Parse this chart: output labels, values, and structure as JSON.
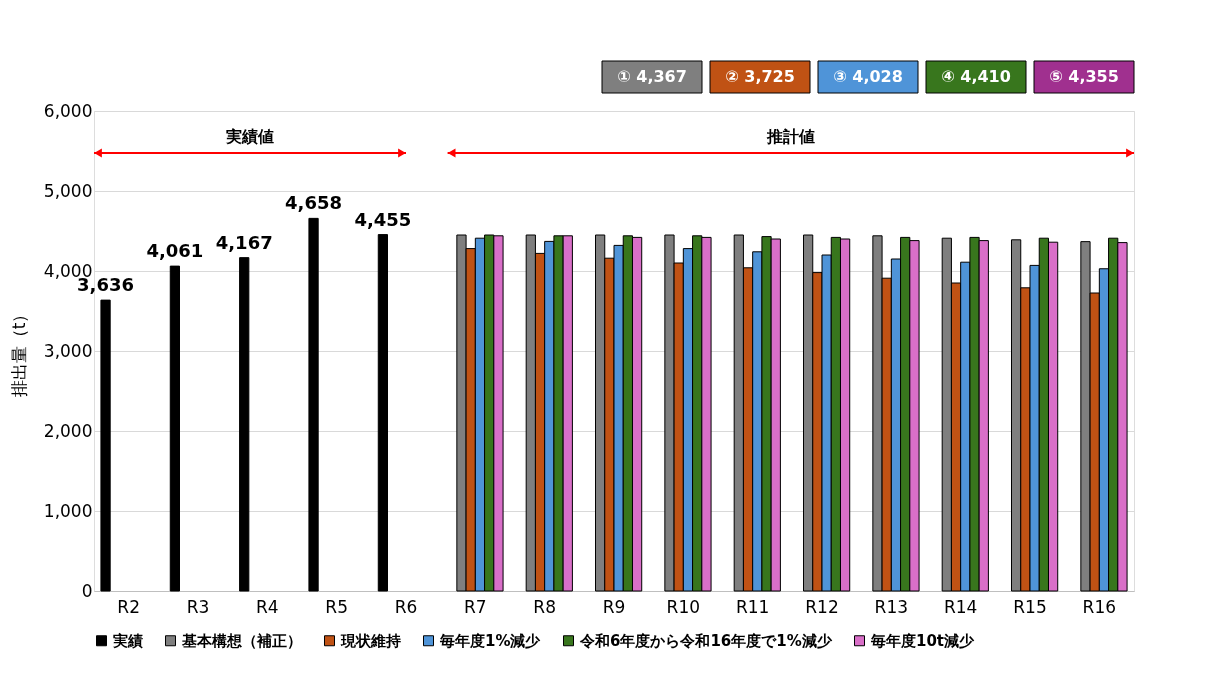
{
  "chart_data": {
    "type": "bar",
    "categories": [
      "R2",
      "R3",
      "R4",
      "R5",
      "R6",
      "R7",
      "R8",
      "R9",
      "R10",
      "R11",
      "R12",
      "R13",
      "R14",
      "R15",
      "R16"
    ],
    "ylabel": "排出量（t）",
    "ylim": [
      0,
      6000
    ],
    "yticks": [
      {
        "value": 0,
        "label": "0"
      },
      {
        "value": 1000,
        "label": "1,000"
      },
      {
        "value": 2000,
        "label": "2,000"
      },
      {
        "value": 3000,
        "label": "3,000"
      },
      {
        "value": 4000,
        "label": "4,000"
      },
      {
        "value": 5000,
        "label": "5,000"
      },
      {
        "value": 6000,
        "label": "6,000"
      }
    ],
    "grid": "y",
    "legend": "bottom",
    "series": [
      {
        "name": "実績",
        "color": "#000000",
        "values": [
          3636,
          4061,
          4167,
          4658,
          4455,
          null,
          null,
          null,
          null,
          null,
          null,
          null,
          null,
          null,
          null
        ],
        "value_labels": [
          "3,636",
          "4,061",
          "4,167",
          "4,658",
          "4,455",
          null,
          null,
          null,
          null,
          null,
          null,
          null,
          null,
          null,
          null
        ]
      },
      {
        "name": "基本構想（補正）",
        "color": "#7f7f7f",
        "values": [
          null,
          null,
          null,
          null,
          null,
          4450,
          4450,
          4450,
          4450,
          4450,
          4450,
          4440,
          4410,
          4390,
          4367
        ]
      },
      {
        "name": "現状維持",
        "color": "#c05214",
        "values": [
          null,
          null,
          null,
          null,
          null,
          4280,
          4220,
          4160,
          4100,
          4040,
          3980,
          3910,
          3850,
          3790,
          3725
        ]
      },
      {
        "name": "毎年度1%減少",
        "color": "#4f94d8",
        "values": [
          null,
          null,
          null,
          null,
          null,
          4410,
          4370,
          4320,
          4280,
          4240,
          4200,
          4150,
          4110,
          4070,
          4028
        ]
      },
      {
        "name": "令和6年度から令和16年度で1%減少",
        "color": "#38761d",
        "values": [
          null,
          null,
          null,
          null,
          null,
          4450,
          4440,
          4440,
          4440,
          4430,
          4420,
          4420,
          4420,
          4410,
          4410
        ]
      },
      {
        "name": "毎年度10t減少",
        "color": "#d96fc8",
        "values": [
          null,
          null,
          null,
          null,
          null,
          4440,
          4440,
          4420,
          4420,
          4400,
          4400,
          4380,
          4380,
          4360,
          4355
        ]
      }
    ],
    "annotations": [
      "実績値",
      "推計値",
      "① 4,367",
      "② 3,725",
      "③ 4,028",
      "④ 4,410",
      "⑤ 4,355"
    ]
  }
}
